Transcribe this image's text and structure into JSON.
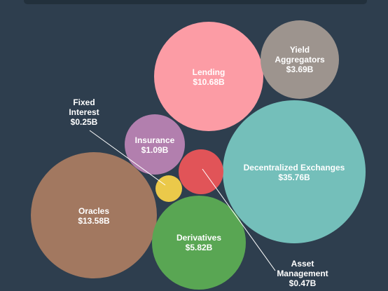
{
  "chart_data": {
    "type": "bubble",
    "title": "",
    "unit": "$B",
    "categories": [
      "Lending",
      "Yield Aggregators",
      "Decentralized Exchanges",
      "Insurance",
      "Fixed Interest",
      "Asset Management",
      "Oracles",
      "Derivatives"
    ],
    "values": [
      10.68,
      3.69,
      35.76,
      1.09,
      0.25,
      0.47,
      13.58,
      5.82
    ],
    "value_labels": [
      "$10.68B",
      "$3.69B",
      "$35.76B",
      "$1.09B",
      "$0.25B",
      "$0.47B",
      "$13.58B",
      "$5.82B"
    ],
    "colors": [
      "#fc9ca5",
      "#9d948e",
      "#74bfba",
      "#b27fae",
      "#ebc94a",
      "#e15458",
      "#a27860",
      "#59a653"
    ],
    "label_lines": [
      [
        "Lending"
      ],
      [
        "Yield",
        "Aggregators"
      ],
      [
        "Decentralized Exchanges"
      ],
      [
        "Insurance"
      ],
      [
        "Fixed",
        "Interest"
      ],
      [
        "Asset",
        "Management"
      ],
      [
        "Oracles"
      ],
      [
        "Derivatives"
      ]
    ],
    "external_labels": [
      "Fixed Interest",
      "Asset Management"
    ]
  },
  "colors": {
    "background": "#2e3e4e",
    "text": "#ffffff",
    "leader_line": "#ffffff"
  }
}
